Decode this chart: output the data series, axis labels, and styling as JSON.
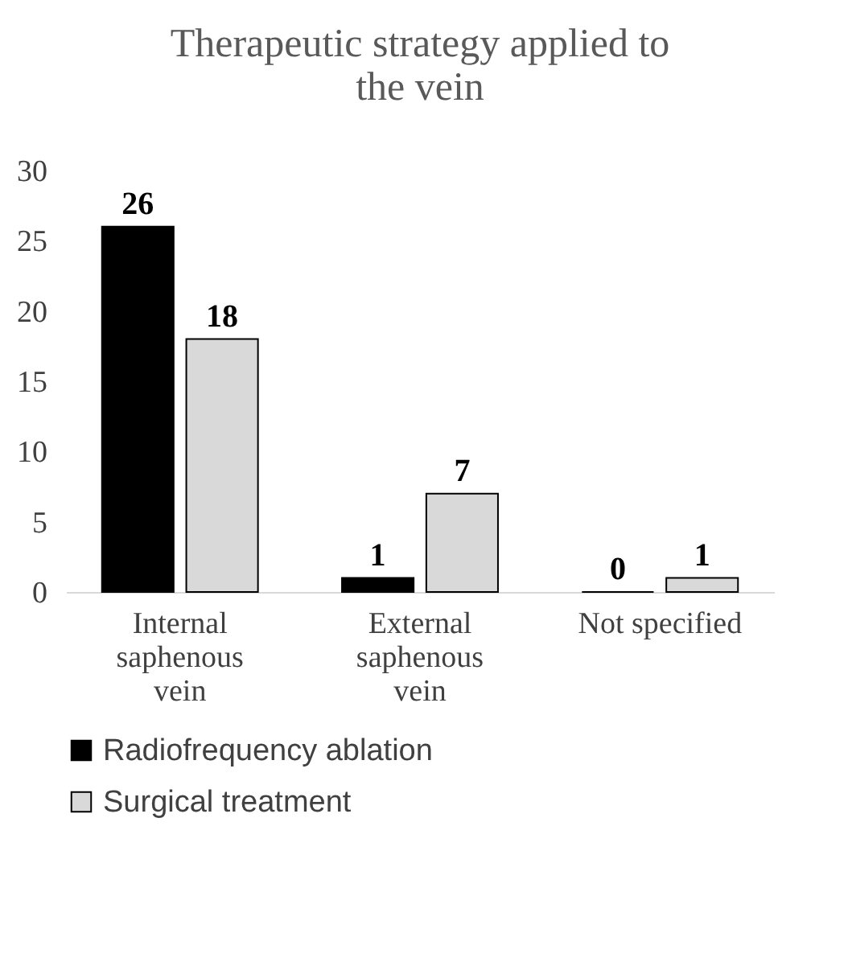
{
  "chart_data": {
    "type": "bar",
    "title": "Therapeutic strategy applied to the vein",
    "categories": [
      "Internal saphenous vein",
      "External saphenous vein",
      "Not specified"
    ],
    "series": [
      {
        "name": "Radiofrequency ablation",
        "color": "#000000",
        "values": [
          26,
          1,
          0
        ]
      },
      {
        "name": "Surgical treatment",
        "color": "#d9d9d9",
        "values": [
          18,
          7,
          1
        ]
      }
    ],
    "ylim": [
      0,
      30
    ],
    "yticks": [
      0,
      5,
      10,
      15,
      20,
      25,
      30
    ],
    "grid": false,
    "legend": "bottom",
    "data_labels": true
  }
}
